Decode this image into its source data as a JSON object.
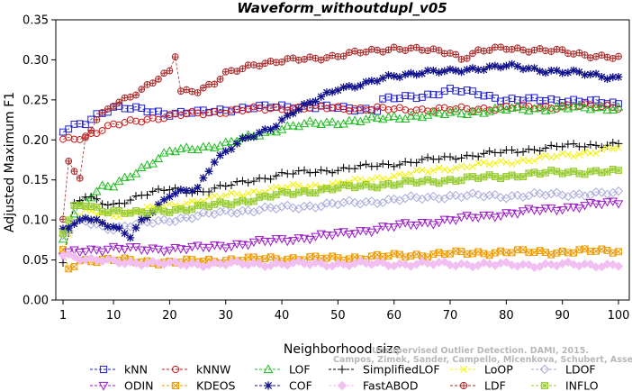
{
  "chart_data": {
    "type": "line",
    "title": "Waveform_withoutdupl_v05",
    "xlabel": "Neighborhood size",
    "ylabel": "Adjusted Maximum F1",
    "xlim": [
      1,
      100
    ],
    "ylim": [
      0,
      0.35
    ],
    "xticks": [
      1,
      10,
      20,
      30,
      40,
      50,
      60,
      70,
      80,
      90,
      100
    ],
    "yticks": [
      0.0,
      0.05,
      0.1,
      0.15,
      0.2,
      0.25,
      0.3,
      0.35
    ],
    "xtick_labels": [
      "1",
      "10",
      "20",
      "30",
      "40",
      "50",
      "60",
      "70",
      "80",
      "90",
      "100"
    ],
    "ytick_labels": [
      "0.00",
      "0.05",
      "0.10",
      "0.15",
      "0.20",
      "0.25",
      "0.30",
      "0.35"
    ],
    "grid": false,
    "legend_placement": "bottom",
    "series": [
      {
        "name": "kNN",
        "color": "#1f1fd0",
        "marker": "square",
        "anchors": [
          [
            1,
            0.21
          ],
          [
            3,
            0.217
          ],
          [
            5,
            0.222
          ],
          [
            7,
            0.232
          ],
          [
            10,
            0.24
          ],
          [
            15,
            0.238
          ],
          [
            20,
            0.233
          ],
          [
            25,
            0.234
          ],
          [
            30,
            0.238
          ],
          [
            40,
            0.242
          ],
          [
            50,
            0.24
          ],
          [
            57,
            0.238
          ],
          [
            58,
            0.25
          ],
          [
            65,
            0.255
          ],
          [
            70,
            0.262
          ],
          [
            75,
            0.258
          ],
          [
            80,
            0.25
          ],
          [
            90,
            0.25
          ],
          [
            100,
            0.245
          ]
        ]
      },
      {
        "name": "kNNW",
        "color": "#cc1a1a",
        "marker": "circle",
        "anchors": [
          [
            1,
            0.2
          ],
          [
            3,
            0.202
          ],
          [
            5,
            0.205
          ],
          [
            8,
            0.213
          ],
          [
            10,
            0.218
          ],
          [
            15,
            0.225
          ],
          [
            20,
            0.23
          ],
          [
            30,
            0.236
          ],
          [
            40,
            0.24
          ],
          [
            50,
            0.24
          ],
          [
            60,
            0.238
          ],
          [
            70,
            0.238
          ],
          [
            80,
            0.24
          ],
          [
            90,
            0.242
          ],
          [
            100,
            0.242
          ]
        ]
      },
      {
        "name": "LOF",
        "color": "#22bb22",
        "marker": "triangle-up",
        "anchors": [
          [
            1,
            0.075
          ],
          [
            3,
            0.11
          ],
          [
            5,
            0.125
          ],
          [
            8,
            0.14
          ],
          [
            10,
            0.142
          ],
          [
            15,
            0.165
          ],
          [
            20,
            0.185
          ],
          [
            25,
            0.19
          ],
          [
            30,
            0.195
          ],
          [
            35,
            0.205
          ],
          [
            40,
            0.215
          ],
          [
            45,
            0.22
          ],
          [
            50,
            0.222
          ],
          [
            60,
            0.228
          ],
          [
            70,
            0.233
          ],
          [
            80,
            0.238
          ],
          [
            90,
            0.24
          ],
          [
            100,
            0.24
          ]
        ]
      },
      {
        "name": "SimplifiedLOF",
        "color": "#000000",
        "marker": "plus",
        "anchors": [
          [
            1,
            0.05
          ],
          [
            3,
            0.12
          ],
          [
            5,
            0.13
          ],
          [
            8,
            0.12
          ],
          [
            10,
            0.118
          ],
          [
            15,
            0.132
          ],
          [
            20,
            0.138
          ],
          [
            25,
            0.135
          ],
          [
            30,
            0.142
          ],
          [
            35,
            0.15
          ],
          [
            40,
            0.157
          ],
          [
            50,
            0.163
          ],
          [
            60,
            0.17
          ],
          [
            70,
            0.178
          ],
          [
            80,
            0.185
          ],
          [
            90,
            0.192
          ],
          [
            100,
            0.195
          ]
        ]
      },
      {
        "name": "LoOP",
        "color": "#f2f20a",
        "marker": "x",
        "anchors": [
          [
            1,
            0.062
          ],
          [
            3,
            0.1
          ],
          [
            5,
            0.11
          ],
          [
            8,
            0.108
          ],
          [
            10,
            0.106
          ],
          [
            15,
            0.112
          ],
          [
            20,
            0.118
          ],
          [
            30,
            0.13
          ],
          [
            40,
            0.14
          ],
          [
            50,
            0.145
          ],
          [
            60,
            0.155
          ],
          [
            70,
            0.165
          ],
          [
            80,
            0.172
          ],
          [
            90,
            0.18
          ],
          [
            100,
            0.19
          ]
        ]
      },
      {
        "name": "LDOF",
        "color": "#aaaadd",
        "marker": "diamond",
        "anchors": [
          [
            1,
            0.08
          ],
          [
            3,
            0.095
          ],
          [
            5,
            0.098
          ],
          [
            8,
            0.092
          ],
          [
            10,
            0.09
          ],
          [
            15,
            0.095
          ],
          [
            20,
            0.1
          ],
          [
            30,
            0.11
          ],
          [
            40,
            0.115
          ],
          [
            50,
            0.12
          ],
          [
            60,
            0.125
          ],
          [
            70,
            0.13
          ],
          [
            80,
            0.13
          ],
          [
            90,
            0.132
          ],
          [
            100,
            0.133
          ]
        ]
      },
      {
        "name": "ODIN",
        "color": "#9a1ac6",
        "marker": "triangle-down",
        "anchors": [
          [
            1,
            0.055
          ],
          [
            3,
            0.06
          ],
          [
            5,
            0.062
          ],
          [
            10,
            0.065
          ],
          [
            15,
            0.063
          ],
          [
            20,
            0.064
          ],
          [
            25,
            0.065
          ],
          [
            30,
            0.068
          ],
          [
            40,
            0.075
          ],
          [
            50,
            0.082
          ],
          [
            60,
            0.092
          ],
          [
            70,
            0.1
          ],
          [
            80,
            0.108
          ],
          [
            90,
            0.115
          ],
          [
            100,
            0.122
          ]
        ]
      },
      {
        "name": "KDEOS",
        "color": "#ee9a00",
        "marker": "box-x",
        "anchors": [
          [
            1,
            0.06
          ],
          [
            2,
            0.038
          ],
          [
            4,
            0.05
          ],
          [
            10,
            0.05
          ],
          [
            15,
            0.048
          ],
          [
            20,
            0.047
          ],
          [
            30,
            0.05
          ],
          [
            40,
            0.052
          ],
          [
            50,
            0.052
          ],
          [
            60,
            0.055
          ],
          [
            70,
            0.058
          ],
          [
            80,
            0.06
          ],
          [
            90,
            0.06
          ],
          [
            100,
            0.062
          ]
        ]
      },
      {
        "name": "COF",
        "color": "#10108a",
        "marker": "star",
        "anchors": [
          [
            1,
            0.09
          ],
          [
            3,
            0.095
          ],
          [
            5,
            0.105
          ],
          [
            8,
            0.095
          ],
          [
            10,
            0.09
          ],
          [
            13,
            0.08
          ],
          [
            15,
            0.1
          ],
          [
            20,
            0.13
          ],
          [
            25,
            0.14
          ],
          [
            28,
            0.175
          ],
          [
            32,
            0.195
          ],
          [
            35,
            0.205
          ],
          [
            38,
            0.215
          ],
          [
            42,
            0.235
          ],
          [
            45,
            0.245
          ],
          [
            50,
            0.265
          ],
          [
            55,
            0.27
          ],
          [
            60,
            0.28
          ],
          [
            65,
            0.285
          ],
          [
            70,
            0.285
          ],
          [
            75,
            0.29
          ],
          [
            80,
            0.292
          ],
          [
            90,
            0.285
          ],
          [
            100,
            0.278
          ]
        ]
      },
      {
        "name": "FastABOD",
        "color": "#f2bff2",
        "marker": "diamond-filled",
        "anchors": [
          [
            1,
            0.058
          ],
          [
            3,
            0.055
          ],
          [
            5,
            0.05
          ],
          [
            10,
            0.048
          ],
          [
            20,
            0.045
          ],
          [
            30,
            0.045
          ],
          [
            40,
            0.045
          ],
          [
            50,
            0.045
          ],
          [
            60,
            0.045
          ],
          [
            70,
            0.045
          ],
          [
            80,
            0.044
          ],
          [
            90,
            0.044
          ],
          [
            100,
            0.044
          ]
        ]
      },
      {
        "name": "LDF",
        "color": "#aa2a2a",
        "marker": "circle-plus",
        "anchors": [
          [
            1,
            0.1
          ],
          [
            2,
            0.175
          ],
          [
            4,
            0.15
          ],
          [
            5,
            0.2
          ],
          [
            7,
            0.225
          ],
          [
            10,
            0.245
          ],
          [
            15,
            0.262
          ],
          [
            20,
            0.285
          ],
          [
            21,
            0.306
          ],
          [
            22,
            0.262
          ],
          [
            25,
            0.262
          ],
          [
            28,
            0.27
          ],
          [
            30,
            0.282
          ],
          [
            35,
            0.295
          ],
          [
            40,
            0.298
          ],
          [
            45,
            0.302
          ],
          [
            50,
            0.305
          ],
          [
            55,
            0.31
          ],
          [
            60,
            0.315
          ],
          [
            65,
            0.312
          ],
          [
            70,
            0.31
          ],
          [
            72,
            0.302
          ],
          [
            75,
            0.31
          ],
          [
            80,
            0.315
          ],
          [
            90,
            0.31
          ],
          [
            100,
            0.302
          ]
        ]
      },
      {
        "name": "INFLO",
        "color": "#99cc33",
        "marker": "box-star",
        "anchors": [
          [
            1,
            0.085
          ],
          [
            3,
            0.115
          ],
          [
            5,
            0.118
          ],
          [
            8,
            0.112
          ],
          [
            10,
            0.112
          ],
          [
            15,
            0.108
          ],
          [
            20,
            0.112
          ],
          [
            30,
            0.12
          ],
          [
            40,
            0.132
          ],
          [
            50,
            0.14
          ],
          [
            60,
            0.145
          ],
          [
            70,
            0.15
          ],
          [
            80,
            0.155
          ],
          [
            90,
            0.16
          ],
          [
            100,
            0.16
          ]
        ]
      }
    ],
    "legend_order": [
      "kNN",
      "kNNW",
      "LOF",
      "SimplifiedLOF",
      "LoOP",
      "LDOF",
      "ODIN",
      "KDEOS",
      "COF",
      "FastABOD",
      "LDF",
      "INFLO"
    ]
  },
  "watermark": {
    "line1": "Unsupervised Outlier Detection. DAMI, 2015.",
    "line2": "Campos, Zimek, Sander, Campello, Micenkova, Schubert, Assent, Houle"
  }
}
